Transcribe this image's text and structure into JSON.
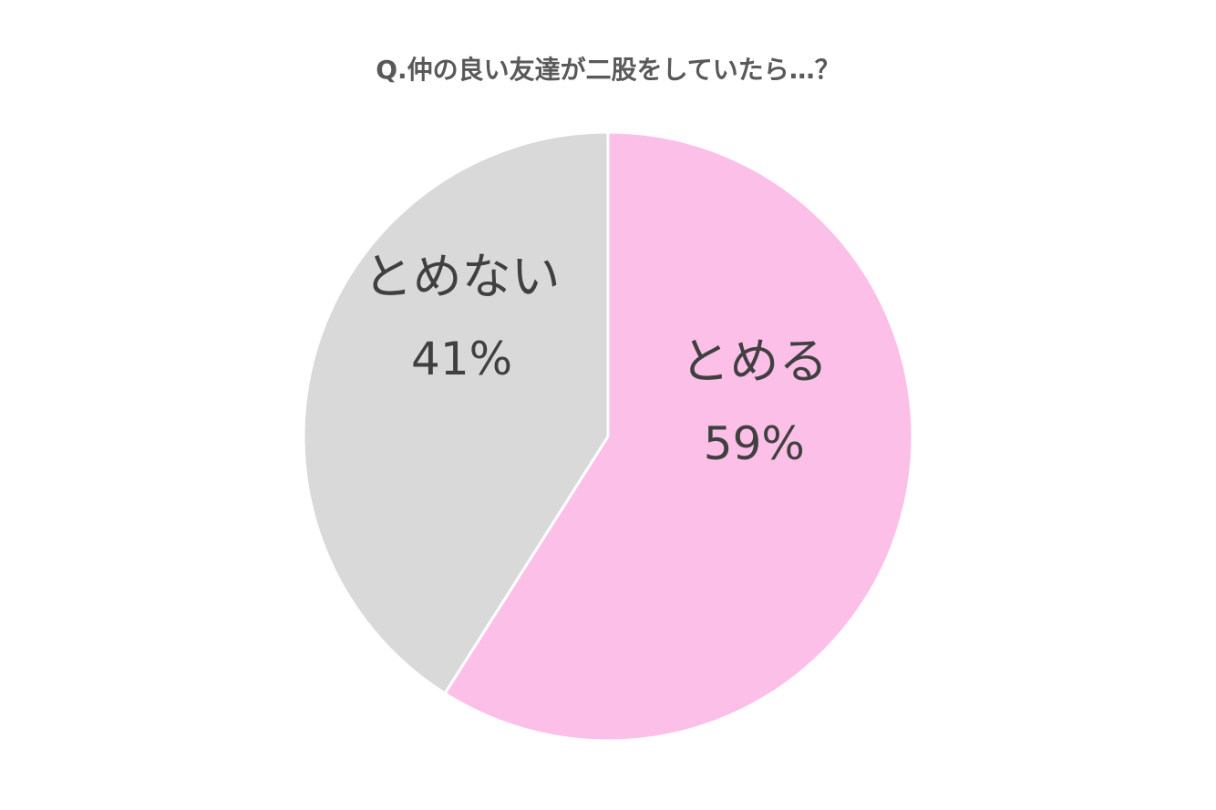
{
  "chart_data": {
    "type": "pie",
    "title": "Q.仲の良い友達が二股をしていたら…？",
    "categories": [
      "とめる",
      "とめない"
    ],
    "values": [
      59,
      41
    ],
    "value_labels": [
      "59%",
      "41%"
    ],
    "colors": [
      "#fcbfe8",
      "#d9d9d9"
    ]
  }
}
